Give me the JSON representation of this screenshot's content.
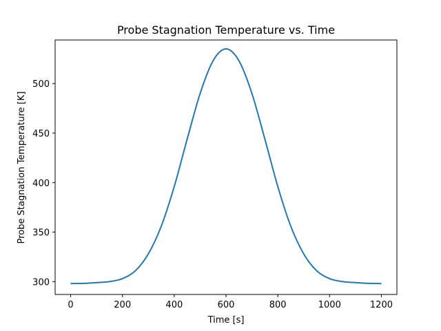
{
  "chart_data": {
    "type": "line",
    "title": "Probe Stagnation Temperature vs. Time",
    "xlabel": "Time [s]",
    "ylabel": "Probe Stagnation Temperature [K]",
    "xlim": [
      -60,
      1260
    ],
    "ylim": [
      287,
      544
    ],
    "xticks": [
      0,
      200,
      400,
      600,
      800,
      1000,
      1200
    ],
    "yticks": [
      300,
      350,
      400,
      450,
      500
    ],
    "grid": false,
    "series": [
      {
        "color": "#1f77b4",
        "x": [
          0,
          50,
          100,
          150,
          200,
          250,
          300,
          350,
          400,
          450,
          500,
          550,
          600,
          650,
          700,
          750,
          800,
          850,
          900,
          950,
          1000,
          1050,
          1100,
          1150,
          1200
        ],
        "y": [
          298,
          298.2,
          299,
          300,
          303,
          311,
          328,
          356,
          396,
          444,
          490,
          523,
          535,
          523,
          490,
          444,
          396,
          356,
          328,
          311,
          303,
          300,
          299,
          298.2,
          298
        ]
      }
    ]
  }
}
